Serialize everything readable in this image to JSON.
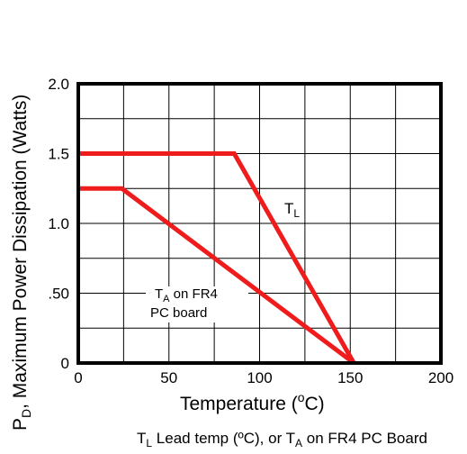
{
  "chart_data": {
    "type": "line",
    "ylabel": "P_D, Maximum Power Dissipation (Watts)",
    "ylabel_parts": {
      "p": "P",
      "sub": "D",
      "rest": ", Maximum Power Dissipation (Watts)"
    },
    "xlabel": "Temperature (°C)",
    "xlabel_parts": {
      "pre": "Temperature (",
      "sup": "o",
      "post": "C)"
    },
    "caption": "T_L Lead temp (ºC), or T_A on FR4 PC Board",
    "caption_parts": {
      "t1": "T",
      "s1": "L",
      "mid": " Lead temp (ºC), or T",
      "s2": "A",
      "post": " on FR4 PC Board"
    },
    "xlim": [
      0,
      200
    ],
    "ylim": [
      0,
      2.0
    ],
    "x_ticks": [
      "0",
      "50",
      "100",
      "150",
      "200"
    ],
    "y_ticks": [
      "0",
      ".50",
      "1.0",
      "1.5",
      "2.0"
    ],
    "grid": true,
    "series": [
      {
        "name": "T_L",
        "label_t": "T",
        "label_sub": "L",
        "color": "#ee1c1c",
        "x": [
          0,
          86,
          152
        ],
        "y": [
          1.5,
          1.5,
          0
        ]
      },
      {
        "name": "T_A on FR4 PC board",
        "label_t": "T",
        "label_sub": "A",
        "label_rest": " on FR4",
        "label_line2": "PC board",
        "color": "#ee1c1c",
        "x": [
          0,
          24,
          152
        ],
        "y": [
          1.25,
          1.25,
          0
        ]
      }
    ]
  }
}
